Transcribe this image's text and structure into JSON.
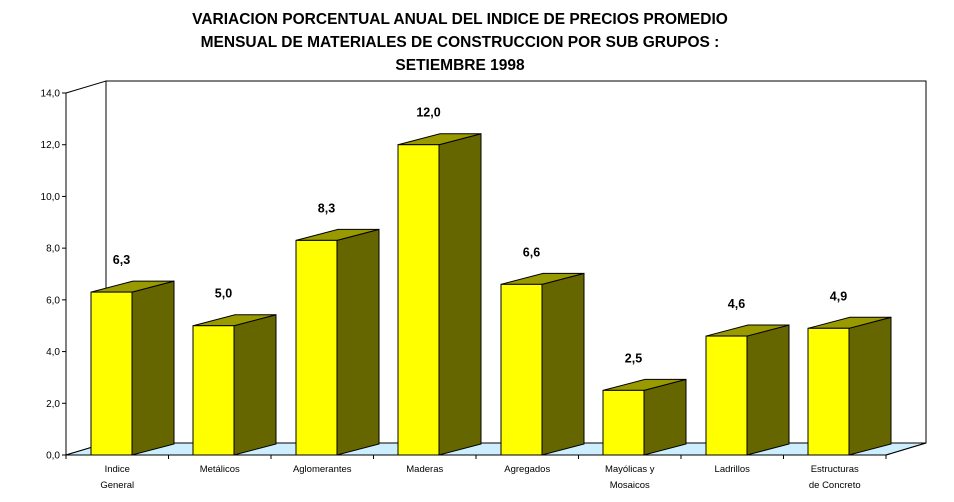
{
  "chart_data": {
    "type": "bar",
    "title": [
      "VARIACION PORCENTUAL ANUAL DEL INDICE DE PRECIOS PROMEDIO",
      "MENSUAL DE MATERIALES DE CONSTRUCCION POR SUB GRUPOS :",
      "SETIEMBRE 1998"
    ],
    "categories": [
      [
        "Indice",
        "General"
      ],
      [
        "Metálicos"
      ],
      [
        "Aglomerantes"
      ],
      [
        "Maderas"
      ],
      [
        "Agregados"
      ],
      [
        "Mayólicas y",
        "Mosaicos"
      ],
      [
        "Ladrillos"
      ],
      [
        "Estructuras",
        "de Concreto"
      ]
    ],
    "values": [
      6.3,
      5.0,
      8.3,
      12.0,
      6.6,
      2.5,
      4.6,
      4.9
    ],
    "data_labels": [
      "6,3",
      "5,0",
      "8,3",
      "12,0",
      "6,6",
      "2,5",
      "4,6",
      "4,9"
    ],
    "ylim": [
      0,
      14
    ],
    "yticks": [
      "0,0",
      "2,0",
      "4,0",
      "6,0",
      "8,0",
      "10,0",
      "12,0",
      "14,0"
    ],
    "xlabel": "",
    "ylabel": "",
    "grid": false,
    "style": "3d-column",
    "colors": {
      "bar_front": "#ffff00",
      "bar_top": "#999900",
      "bar_side": "#666600",
      "floor": "#cceeff",
      "outline": "#000000"
    }
  }
}
